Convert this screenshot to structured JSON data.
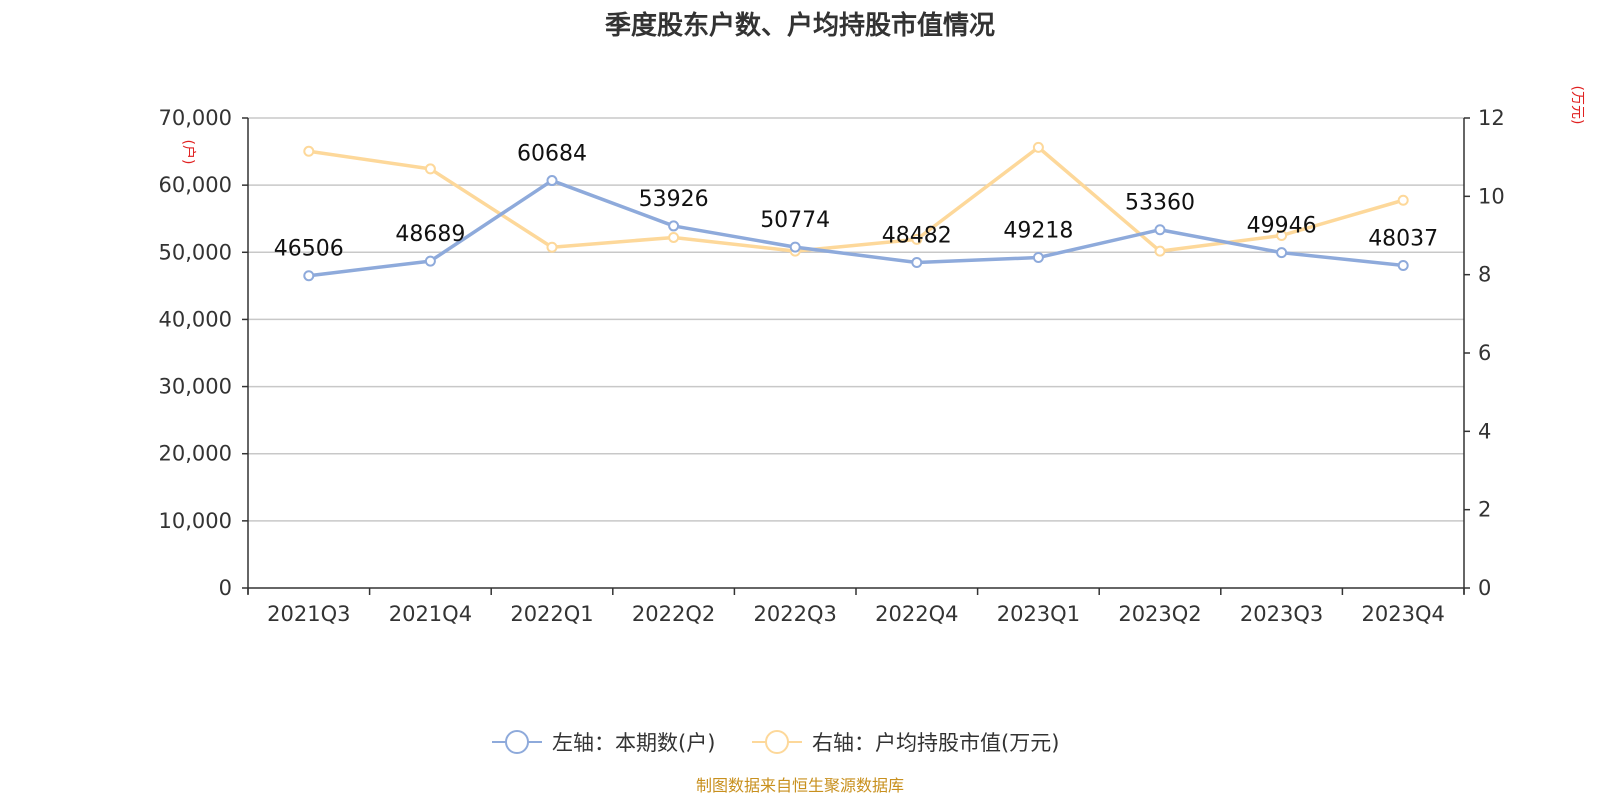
{
  "chart_data": {
    "type": "line",
    "title": "季度股东户数、户均持股市值情况",
    "categories": [
      "2021Q3",
      "2021Q4",
      "2022Q1",
      "2022Q2",
      "2022Q3",
      "2022Q4",
      "2023Q1",
      "2023Q2",
      "2023Q3",
      "2023Q4"
    ],
    "left_axis": {
      "unit": "(户)",
      "ylim": [
        0,
        70000
      ],
      "ticks": [
        "0",
        "10,000",
        "20,000",
        "30,000",
        "40,000",
        "50,000",
        "60,000",
        "70,000"
      ]
    },
    "right_axis": {
      "unit": "(万元)",
      "ylim": [
        0,
        12
      ],
      "ticks": [
        "0",
        "2",
        "4",
        "6",
        "8",
        "10",
        "12"
      ]
    },
    "series": [
      {
        "name": "左轴：本期数(户)",
        "axis": "left",
        "color": "#8eaadb",
        "values": [
          46506,
          48689,
          60684,
          53926,
          50774,
          48482,
          49218,
          53360,
          49946,
          48037
        ],
        "labels": [
          "46506",
          "48689",
          "60684",
          "53926",
          "50774",
          "48482",
          "49218",
          "53360",
          "49946",
          "48037"
        ]
      },
      {
        "name": "右轴：户均持股市值(万元)",
        "axis": "right",
        "color": "#fdd89a",
        "values": [
          11.15,
          10.7,
          8.7,
          8.95,
          8.6,
          8.9,
          11.25,
          8.6,
          9.0,
          9.9
        ]
      }
    ],
    "grid": true,
    "legend_position": "bottom"
  },
  "footer": {
    "source": "制图数据来自恒生聚源数据库"
  }
}
